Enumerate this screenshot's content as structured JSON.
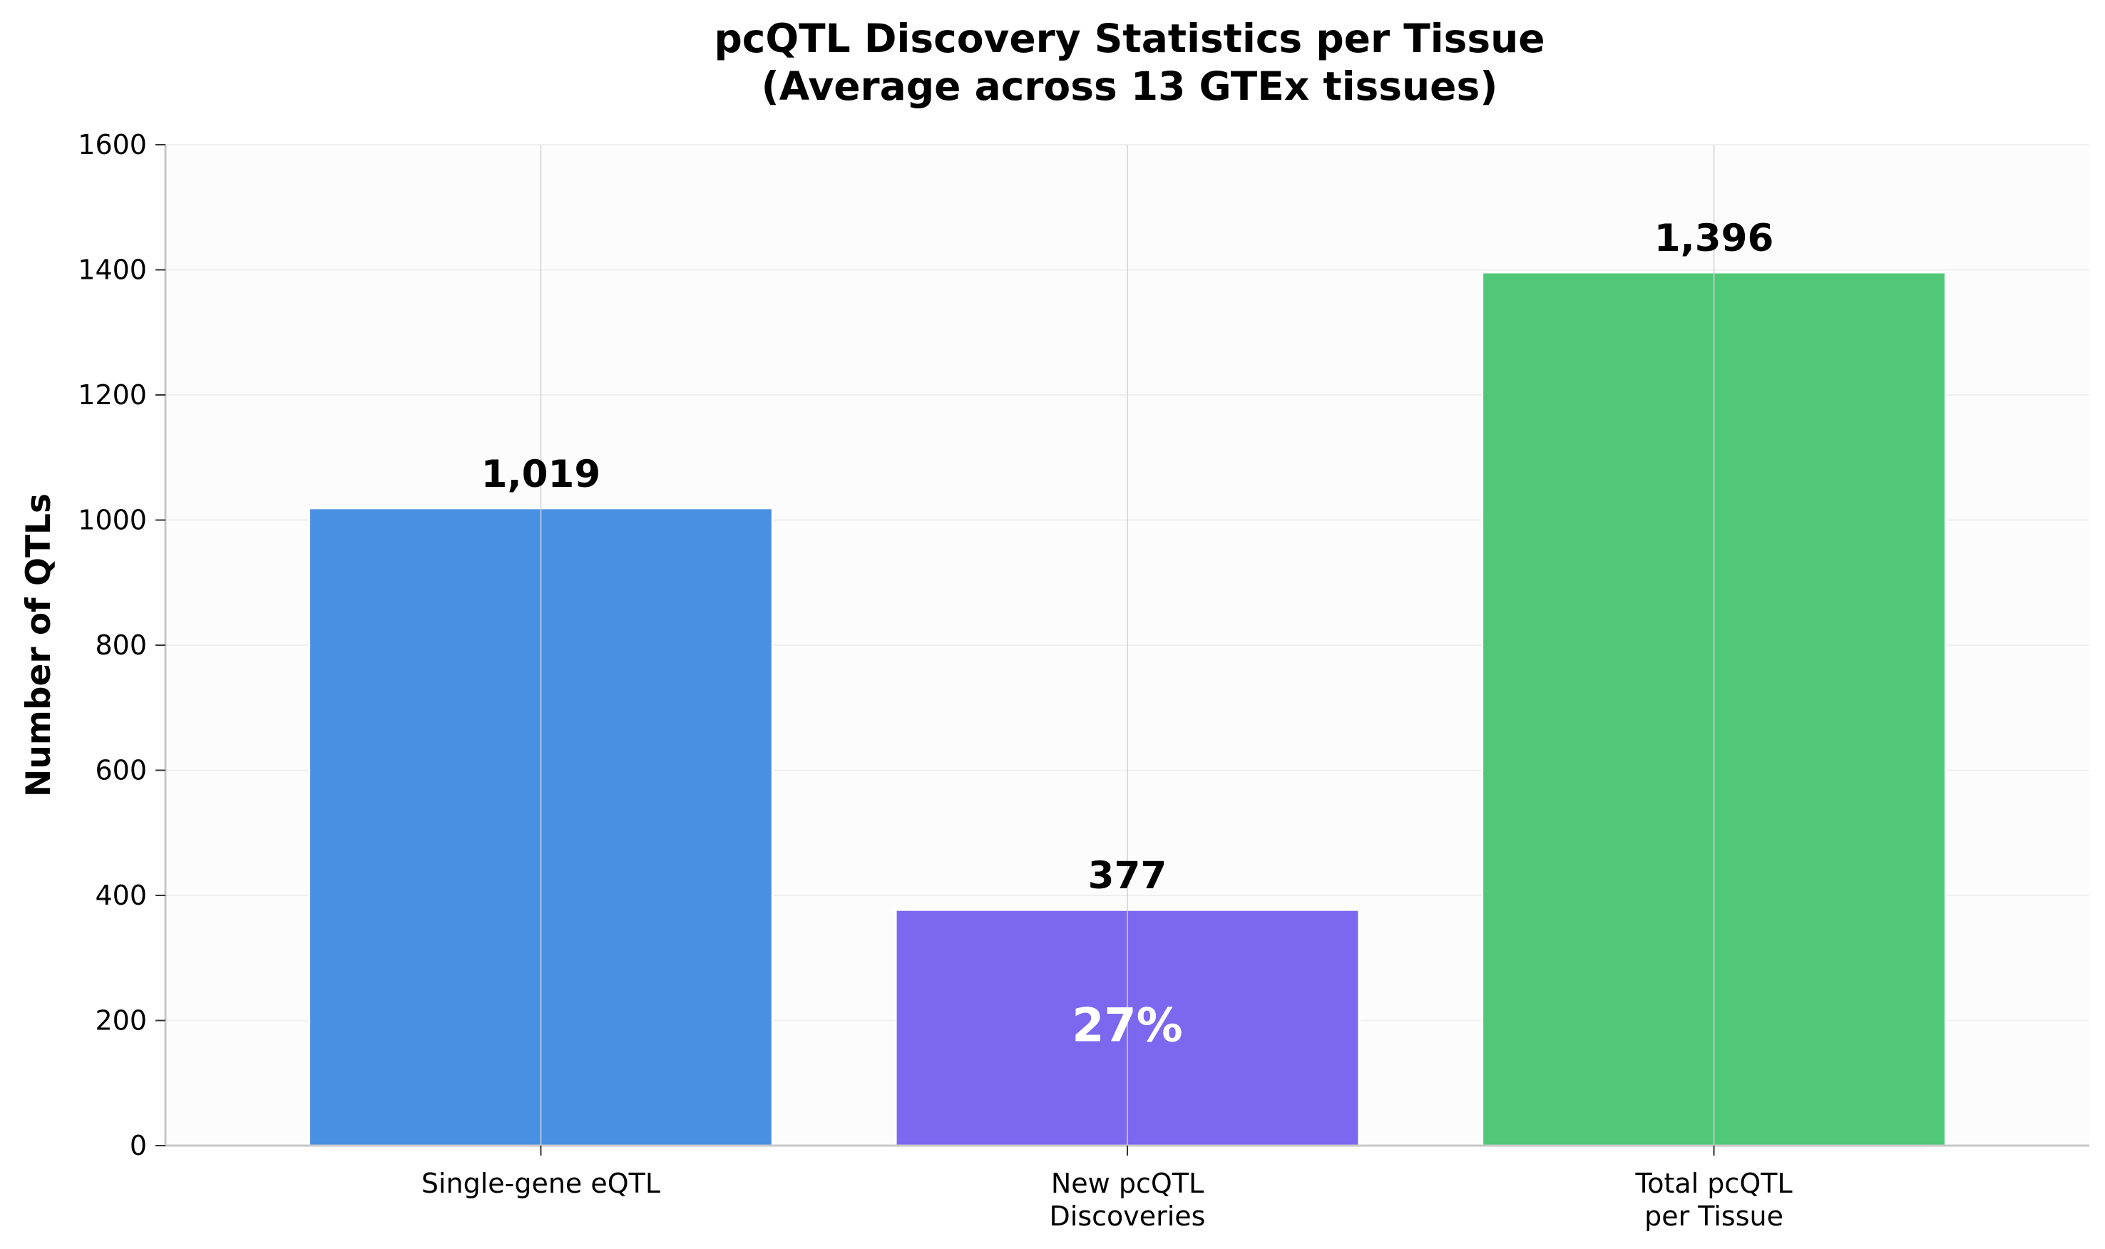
{
  "chart_data": {
    "type": "bar",
    "title": "pcQTL Discovery Statistics per Tissue",
    "subtitle": "(Average across 13 GTEx tissues)",
    "xlabel": "",
    "ylabel": "Number of QTLs",
    "ylim": [
      0,
      1600
    ],
    "yticks": [
      0,
      200,
      400,
      600,
      800,
      1000,
      1200,
      1400,
      1600
    ],
    "grid": true,
    "categories": [
      {
        "line1": "Single-gene eQTL",
        "line2": ""
      },
      {
        "line1": "New pcQTL",
        "line2": "Discoveries"
      },
      {
        "line1": "Total pcQTL",
        "line2": "per Tissue"
      }
    ],
    "values": [
      1019,
      377,
      1396
    ],
    "value_labels": [
      "1,019",
      "377",
      "1,396"
    ],
    "colors": [
      "#4a90e2",
      "#7b68ee",
      "#50c878"
    ],
    "annotation": {
      "category_index": 1,
      "text": "27%",
      "y": 190
    }
  }
}
